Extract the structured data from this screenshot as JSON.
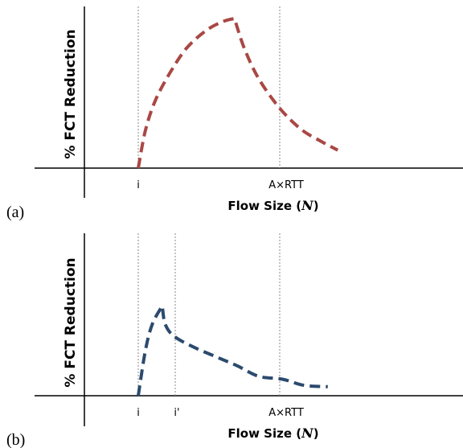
{
  "chart_data": [
    {
      "type": "line",
      "panel_label": "(a)",
      "ylabel": "% FCT Reduction",
      "xlabel": "Flow Size (",
      "xlabel_var": "N",
      "xlabel_close": ")",
      "tick_labels": [
        "i",
        "A×RTT"
      ],
      "series": [
        {
          "color": "#A94844",
          "style": "dashed",
          "points": [
            [
              0.0,
              0.0
            ],
            [
              0.05,
              0.25
            ],
            [
              0.12,
              0.45
            ],
            [
              0.22,
              0.63
            ],
            [
              0.34,
              0.8
            ],
            [
              0.48,
              0.92
            ],
            [
              0.6,
              0.98
            ],
            [
              0.68,
              1.0
            ],
            [
              0.75,
              0.8
            ],
            [
              0.85,
              0.6
            ],
            [
              1.0,
              0.4
            ],
            [
              1.15,
              0.26
            ],
            [
              1.29,
              0.18
            ],
            [
              1.41,
              0.12
            ]
          ]
        }
      ]
    },
    {
      "type": "line",
      "panel_label": "(b)",
      "ylabel": "% FCT Reduction",
      "xlabel": "Flow Size (",
      "xlabel_var": "N",
      "xlabel_close": ")",
      "tick_labels": [
        "i",
        "i'",
        "A×RTT"
      ],
      "series": [
        {
          "color": "#2B4A6E",
          "style": "dashed",
          "points": [
            [
              0.0,
              0.0
            ],
            [
              0.05,
              0.3
            ],
            [
              0.1,
              0.48
            ],
            [
              0.17,
              0.6
            ],
            [
              0.19,
              0.48
            ],
            [
              0.25,
              0.4
            ],
            [
              0.38,
              0.33
            ],
            [
              0.55,
              0.26
            ],
            [
              0.7,
              0.2
            ],
            [
              0.85,
              0.13
            ],
            [
              1.02,
              0.11
            ],
            [
              1.17,
              0.07
            ],
            [
              1.34,
              0.06
            ]
          ]
        }
      ]
    }
  ]
}
